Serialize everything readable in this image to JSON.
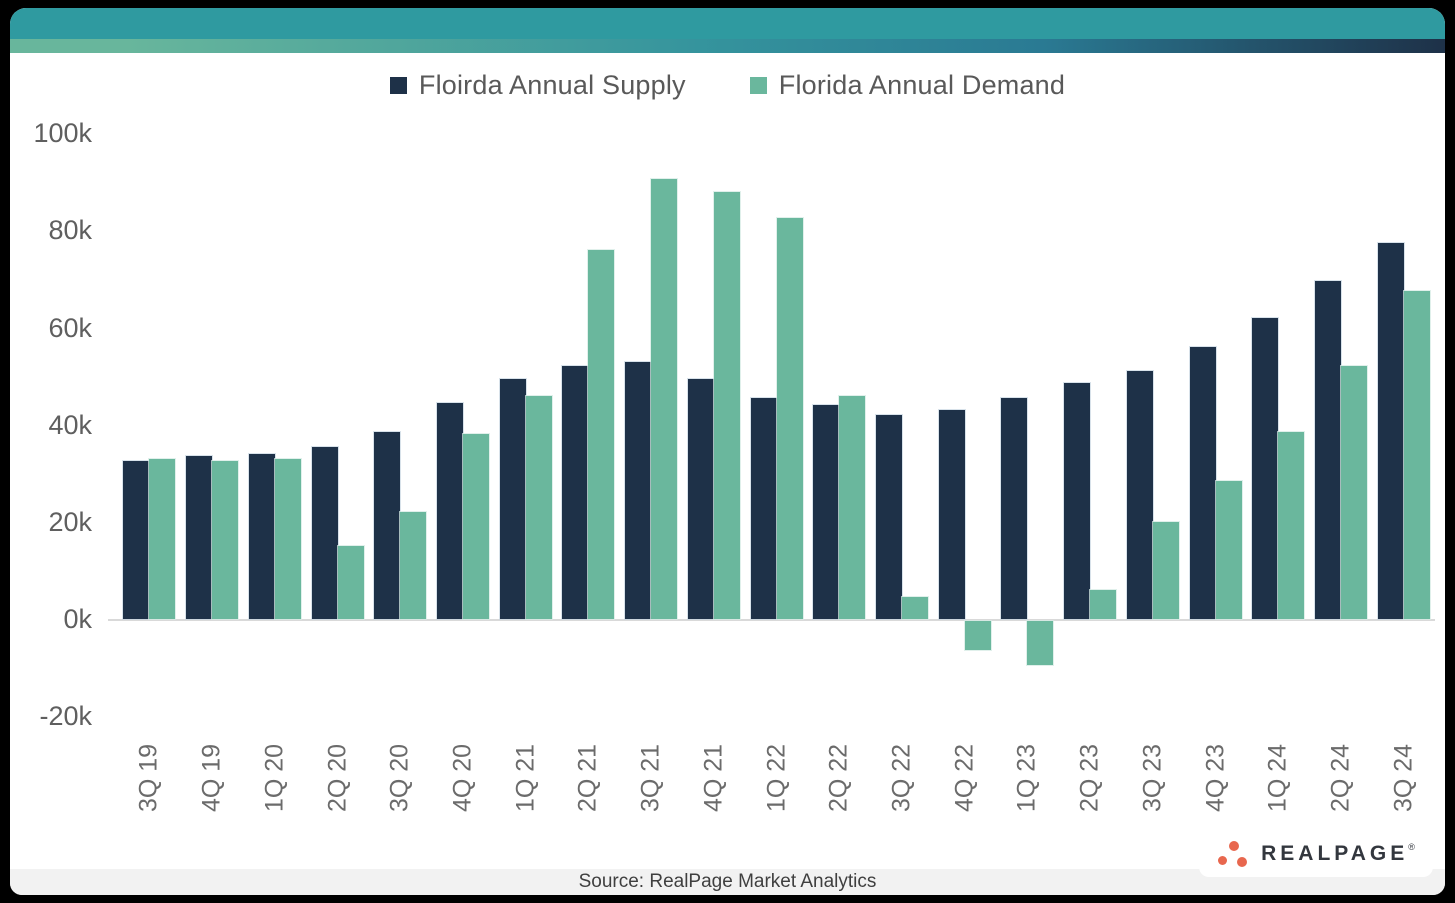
{
  "colors": {
    "header_teal": "#2F9AA0",
    "stripe_gradient_left": "#68B69C",
    "stripe_gradient_mid": "#35949D",
    "stripe_gradient_right": "#1E3148",
    "supply_navy": "#1E3148",
    "demand_green": "#6AB79D",
    "axis_text": "#5F5F5F",
    "baseline_gray": "#D9D9D9",
    "source_band_gray": "#F2F2F2",
    "logo_dot_coral": "#E8674E",
    "logo_text_dark": "#33373E"
  },
  "chart_data": {
    "type": "bar",
    "title": "",
    "xlabel": "",
    "ylabel": "",
    "grid": false,
    "legend_position": "top",
    "ylim": [
      -20000,
      100000
    ],
    "y_ticks": [
      {
        "label": "100k",
        "value": 100000
      },
      {
        "label": "80k",
        "value": 80000
      },
      {
        "label": "60k",
        "value": 60000
      },
      {
        "label": "40k",
        "value": 40000
      },
      {
        "label": "20k",
        "value": 20000
      },
      {
        "label": "0k",
        "value": 0
      },
      {
        "label": "-20k",
        "value": -20000
      }
    ],
    "categories": [
      "3Q 19",
      "4Q 19",
      "1Q 20",
      "2Q 20",
      "3Q 20",
      "4Q 20",
      "1Q 21",
      "2Q 21",
      "3Q 21",
      "4Q 21",
      "1Q 22",
      "2Q 22",
      "3Q 22",
      "4Q 22",
      "1Q 23",
      "2Q 23",
      "3Q 23",
      "4Q 23",
      "1Q 24",
      "2Q 24",
      "3Q 24"
    ],
    "series": [
      {
        "name": "Floirda Annual Supply",
        "color": "#1E3148",
        "values": [
          32500,
          33500,
          34000,
          35500,
          38500,
          44500,
          49500,
          52000,
          53000,
          49500,
          45500,
          44000,
          42000,
          43000,
          45500,
          48500,
          51000,
          56000,
          62000,
          69500,
          77500
        ]
      },
      {
        "name": "Florida Annual Demand",
        "color": "#6AB79D",
        "values": [
          33000,
          32500,
          33000,
          15000,
          22000,
          38000,
          46000,
          76000,
          90500,
          88000,
          82500,
          46000,
          4500,
          -6000,
          -9000,
          6000,
          20000,
          28500,
          38500,
          52000,
          67500
        ]
      }
    ]
  },
  "footer": {
    "source": "Source: RealPage Market Analytics",
    "logo": {
      "text": "REALPAGE",
      "mark": "®"
    }
  }
}
